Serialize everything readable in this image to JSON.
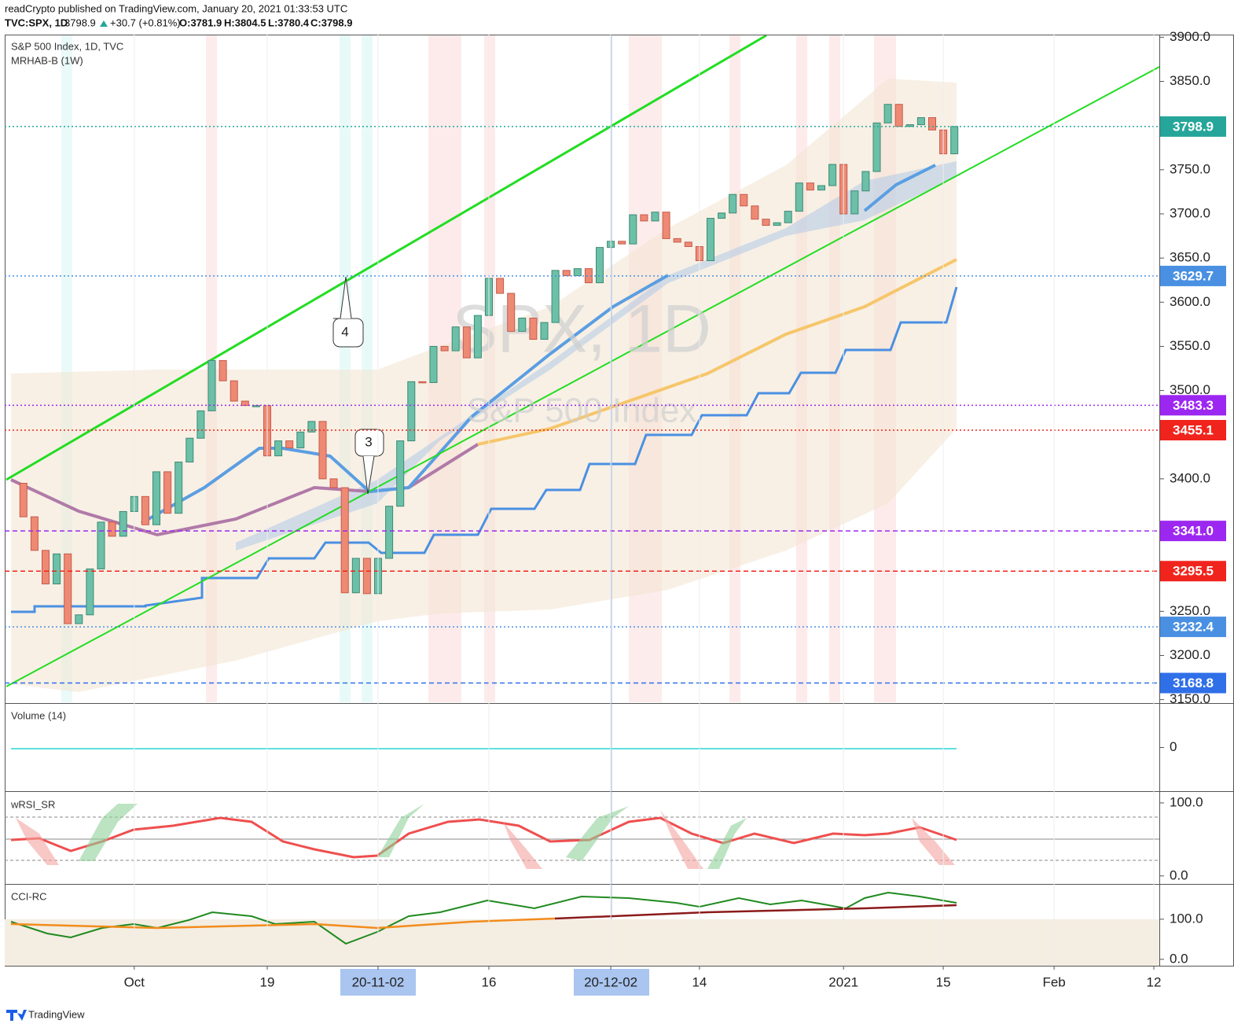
{
  "header": {
    "publisher": "readCrypto published on TradingView.com, January 20, 2021 01:33:53 UTC",
    "symbol": "TVC:SPX, 1D",
    "last": "3798.9",
    "change": "+30.7 (+0.81%)",
    "open": "O:3781.9",
    "high": "H:3804.5",
    "low": "L:3780.4",
    "close": "C:3798.9"
  },
  "legend": {
    "series": "S&P 500 Index, 1D, TVC",
    "indicator": "MRHAB-B (1W)"
  },
  "watermark": {
    "symbol": "SPX, 1D",
    "name": "S&P 500 Index"
  },
  "annotations": [
    "4",
    "3"
  ],
  "chart_data": {
    "type": "candlestick",
    "categories": [
      null,
      null,
      null,
      null,
      null,
      null,
      null,
      null,
      null,
      null,
      "Oct",
      null,
      null,
      null,
      null,
      null,
      null,
      null,
      null,
      null,
      null,
      null,
      "19",
      null,
      null,
      null,
      null,
      null,
      null,
      null,
      null,
      null,
      "20-11-02",
      null,
      null,
      null,
      null,
      null,
      null,
      null,
      null,
      null,
      "16",
      null,
      null,
      null,
      null,
      null,
      null,
      null,
      null,
      null,
      null,
      "20-12-02",
      null,
      null,
      null,
      null,
      null,
      null,
      null,
      "14",
      null,
      null,
      null,
      null,
      null,
      null,
      null,
      null,
      null,
      null,
      null,
      null,
      "2021",
      null,
      null,
      null,
      null,
      null,
      null,
      null,
      null,
      "15",
      null,
      null,
      null,
      null,
      null,
      null,
      null,
      null,
      null,
      "Feb",
      null,
      null,
      null,
      null,
      null,
      null,
      null,
      null,
      "12"
    ],
    "open": [
      3395,
      3357,
      3319,
      3281,
      3315,
      3236,
      3246,
      3298,
      3351,
      3335,
      3363,
      3380,
      3348,
      3408,
      3361,
      3419,
      3446,
      3477,
      3534,
      3511,
      3488,
      3483,
      3483,
      3426,
      3443,
      3435,
      3453,
      3465,
      3400,
      3390,
      3271,
      3310,
      3270,
      3310,
      3369,
      3443,
      3510,
      3509,
      3550,
      3545,
      3572,
      3537,
      3585,
      3627,
      3610,
      3567,
      3582,
      3558,
      3577,
      3636,
      3630,
      3638,
      3622,
      3662,
      3669,
      3666,
      3699,
      3692,
      3702,
      3672,
      3668,
      3663,
      3647,
      3695,
      3701,
      3722,
      3709,
      3694,
      3687,
      3690,
      3703,
      3735,
      3727,
      3732,
      3756,
      3700,
      3726,
      3748,
      3803,
      3824,
      3799,
      3801,
      3809,
      3795,
      3768,
      null,
      null,
      null,
      null,
      null,
      null,
      null,
      null,
      null,
      null,
      null,
      null,
      null,
      null,
      null,
      null,
      null,
      null
    ],
    "close": [
      3357,
      3319,
      3281,
      3315,
      3236,
      3246,
      3298,
      3351,
      3335,
      3363,
      3380,
      3348,
      3408,
      3361,
      3419,
      3446,
      3477,
      3534,
      3511,
      3488,
      3483,
      3483,
      3426,
      3443,
      3435,
      3453,
      3465,
      3400,
      3390,
      3271,
      3310,
      3270,
      3310,
      3369,
      3443,
      3510,
      3509,
      3550,
      3545,
      3572,
      3537,
      3585,
      3627,
      3610,
      3567,
      3582,
      3558,
      3577,
      3636,
      3630,
      3638,
      3622,
      3662,
      3669,
      3666,
      3699,
      3692,
      3702,
      3672,
      3668,
      3663,
      3647,
      3695,
      3701,
      3722,
      3709,
      3694,
      3687,
      3690,
      3703,
      3735,
      3727,
      3732,
      3756,
      3700,
      3726,
      3748,
      3803,
      3824,
      3799,
      3801,
      3809,
      3795,
      3768,
      3798.9,
      null,
      null,
      null,
      null,
      null,
      null,
      null,
      null,
      null,
      null,
      null,
      null,
      null,
      null,
      null,
      null,
      null,
      null
    ],
    "up_color": "#6cc0a8",
    "down_color": "#ee8a74",
    "ylim": [
      3147,
      3903
    ],
    "yticks": [
      {
        "value": 3900,
        "label": "3900.0"
      },
      {
        "value": 3850,
        "label": "3850.0"
      },
      {
        "value": 3750,
        "label": "3750.0"
      },
      {
        "value": 3700,
        "label": "3700.0"
      },
      {
        "value": 3650,
        "label": "3650.0"
      },
      {
        "value": 3600,
        "label": "3600.0"
      },
      {
        "value": 3550,
        "label": "3550.0"
      },
      {
        "value": 3500,
        "label": "3500.0"
      },
      {
        "value": 3400,
        "label": "3400.0"
      },
      {
        "value": 3250,
        "label": "3250.0"
      },
      {
        "value": 3200,
        "label": "3200.0"
      },
      {
        "value": 3150,
        "label": "3150.0"
      }
    ],
    "price_lines": [
      {
        "value": 3798.9,
        "label": "3798.9",
        "color": "#26a69a",
        "style": "dotted"
      },
      {
        "value": 3629.7,
        "label": "3629.7",
        "color": "#4a90e2",
        "style": "dotted"
      },
      {
        "value": 3483.3,
        "label": "3483.3",
        "color": "#9c27f0",
        "style": "dotted"
      },
      {
        "value": 3455.1,
        "label": "3455.1",
        "color": "#f0241c",
        "style": "dotted"
      },
      {
        "value": 3341.0,
        "label": "3341.0",
        "color": "#9c27f0",
        "style": "dashed"
      },
      {
        "value": 3295.5,
        "label": "3295.5",
        "color": "#f0241c",
        "style": "dashed"
      },
      {
        "value": 3232.4,
        "label": "3232.4",
        "color": "#4a90e2",
        "style": "dotted"
      },
      {
        "value": 3168.8,
        "label": "3168.8",
        "color": "#2f6fe8",
        "style": "dashed"
      }
    ]
  },
  "panes": [
    {
      "title": "Volume (14)",
      "ylim": [
        -1,
        1
      ],
      "yticks": [
        0
      ]
    },
    {
      "title": "wRSI_SR",
      "ylim": [
        -11,
        115
      ],
      "yticks": [
        {
          "value": 100,
          "label": "100.0"
        },
        {
          "value": 0,
          "label": "0.0"
        }
      ]
    },
    {
      "title": "CCI-RC",
      "ylim": [
        -16,
        186
      ],
      "yticks": [
        {
          "value": 100,
          "label": "100.0"
        },
        {
          "value": 0,
          "label": "0.0"
        }
      ]
    }
  ],
  "footer": "TradingView"
}
